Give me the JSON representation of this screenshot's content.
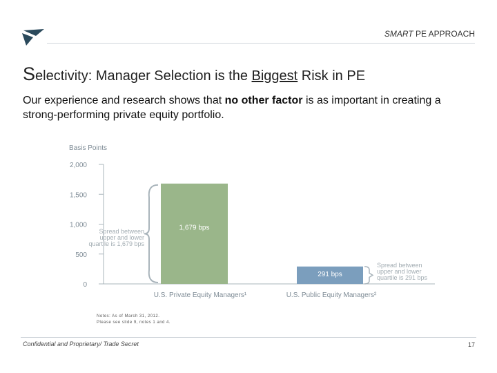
{
  "header": {
    "tag_em": "SMART",
    "tag_rest": " PE APPROACH"
  },
  "title": {
    "cap": "S",
    "part1": "electivity: Manager Selection is the ",
    "underlined": "Biggest",
    "part2": " Risk in PE"
  },
  "intro": {
    "text1": "Our experience and research shows that ",
    "bold": "no other factor",
    "text2": " is as important in creating a strong-performing private equity portfolio."
  },
  "chart_data": {
    "type": "bar",
    "ylabel": "Basis Points",
    "ylim": [
      0,
      2000
    ],
    "yticks": [
      "2,000",
      "1,500",
      "1,000",
      "500",
      "0"
    ],
    "yticks_values": [
      2000,
      1500,
      1000,
      500,
      0
    ],
    "categories": [
      "U.S. Private Equity Managers¹",
      "U.S. Public Equity Managers²"
    ],
    "values": [
      1679,
      291
    ],
    "bar_labels": [
      "1,679 bps",
      "291 bps"
    ],
    "bar_colors": [
      "#9ab68a",
      "#7b9ebd"
    ],
    "annotations": [
      [
        "Spread between",
        "upper and lower",
        "quartile is 1,679 bps"
      ],
      [
        "Spread between",
        "upper and lower",
        "quartile is 291 bps"
      ]
    ]
  },
  "notes": {
    "line1": "Notes: As of March 31, 2012.",
    "line2": "Please see slide 9, notes 1 and 4."
  },
  "footer": {
    "text": "Confidential and Proprietary/ Trade Secret",
    "page": "17"
  }
}
